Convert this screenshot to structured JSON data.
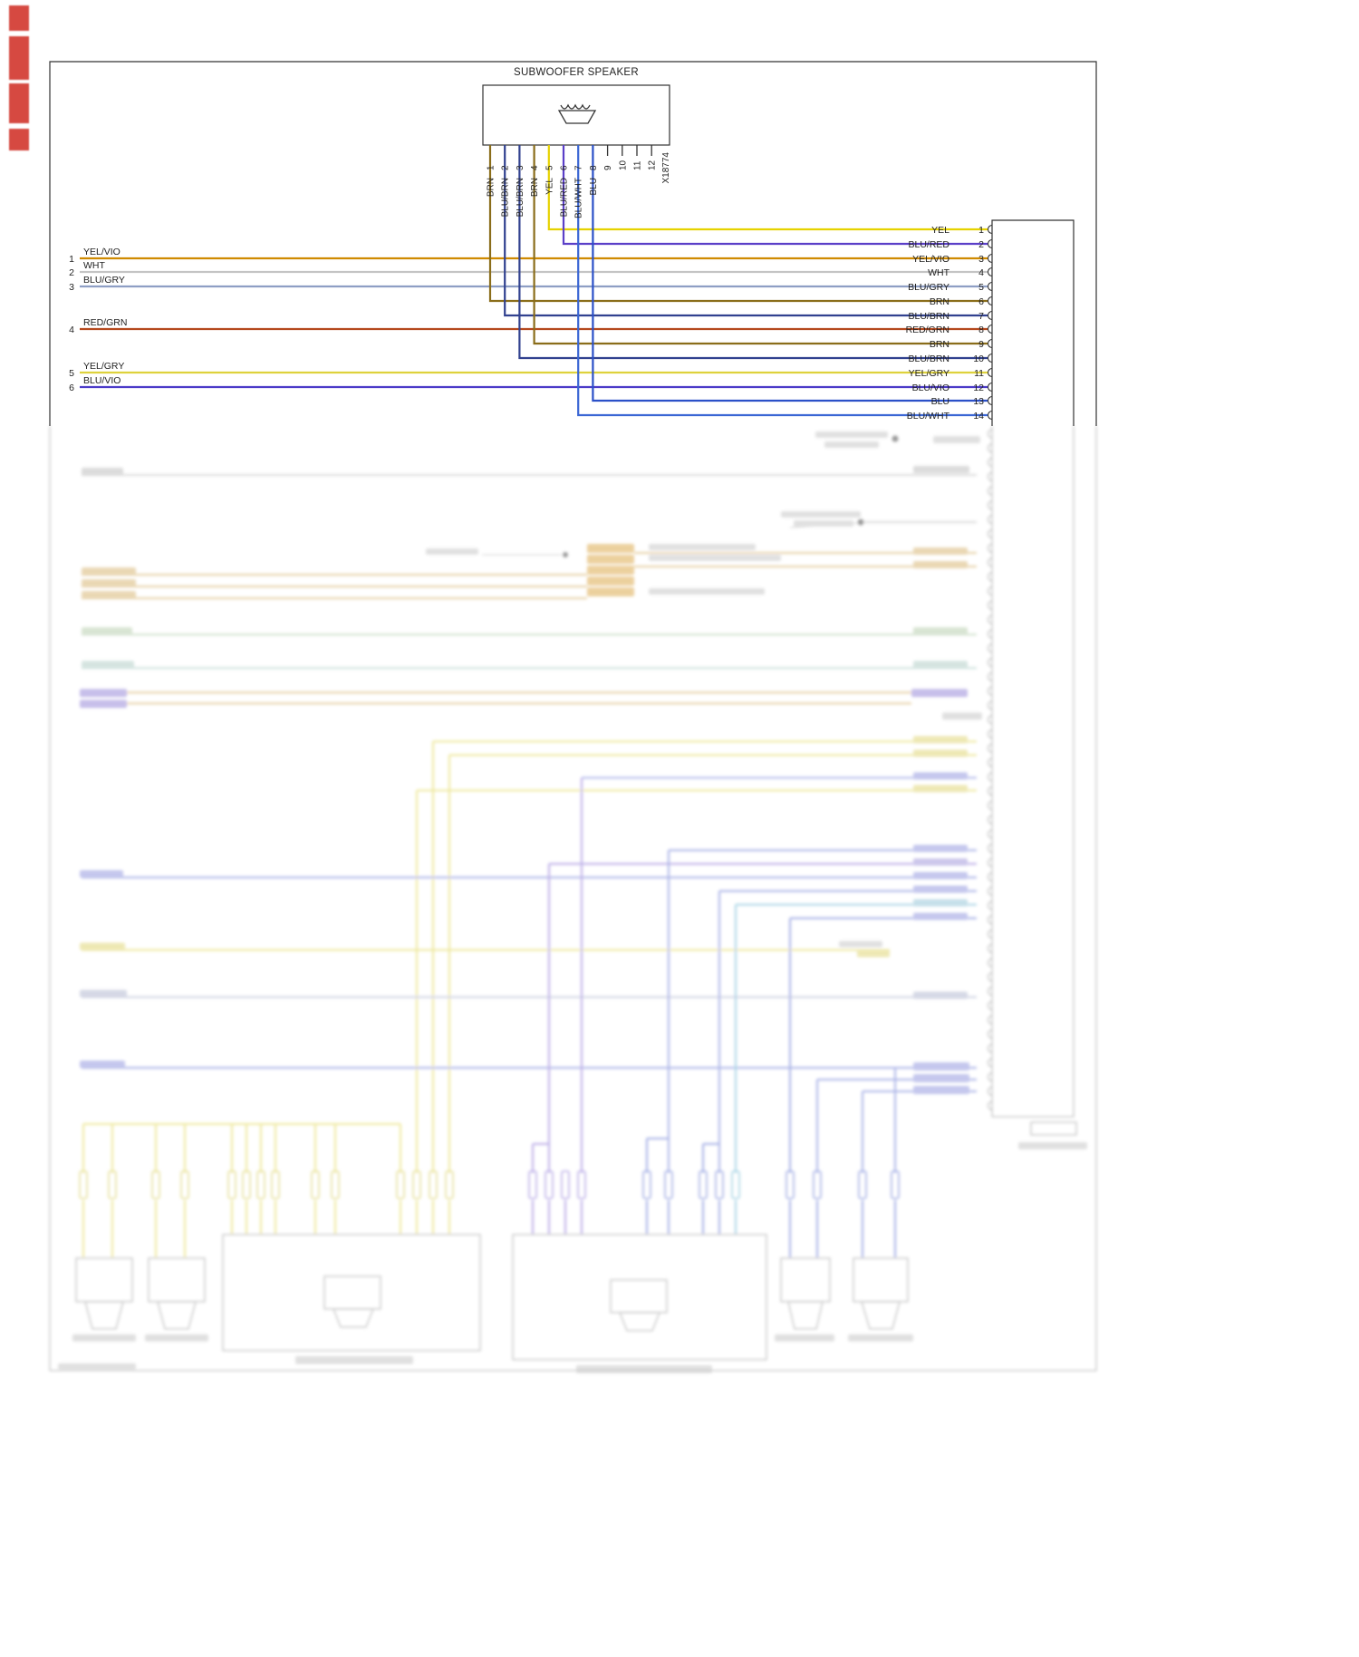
{
  "diagram": {
    "title": "SUBWOOFER SPEAKER",
    "connector_id": "X18774",
    "wire_colors": {
      "YEL": "#e6d200",
      "BLU/RED": "#5b3fc8",
      "YEL/VIO": "#cf8a00",
      "WHT": "#c4c4c4",
      "BLU/GRY": "#8e9ec4",
      "BRN": "#8a6d1a",
      "BLU/BRN": "#31418f",
      "RED/GRN": "#b5481d",
      "YEL/GRY": "#ded23c",
      "BLU/VIO": "#4b3ac8",
      "BLU": "#2b50c8",
      "BLU/WHT": "#3a66d4"
    },
    "subwoofer_pins": [
      {
        "pin": "1",
        "wire": "BRN"
      },
      {
        "pin": "2",
        "wire": "BLU/BRN"
      },
      {
        "pin": "3",
        "wire": "BLU/BRN"
      },
      {
        "pin": "4",
        "wire": "BRN"
      },
      {
        "pin": "5",
        "wire": "YEL"
      },
      {
        "pin": "6",
        "wire": "BLU/RED"
      },
      {
        "pin": "7",
        "wire": "BLU/WHT"
      },
      {
        "pin": "8",
        "wire": "BLU"
      },
      {
        "pin": "9",
        "wire": ""
      },
      {
        "pin": "10",
        "wire": ""
      },
      {
        "pin": "11",
        "wire": ""
      },
      {
        "pin": "12",
        "wire": ""
      }
    ],
    "left_branches": [
      {
        "num": "1",
        "wire": "YEL/VIO"
      },
      {
        "num": "2",
        "wire": "WHT"
      },
      {
        "num": "3",
        "wire": "BLU/GRY"
      },
      {
        "num": "4",
        "wire": "RED/GRN"
      },
      {
        "num": "5",
        "wire": "YEL/GRY"
      },
      {
        "num": "6",
        "wire": "BLU/VIO"
      }
    ],
    "right_connector_pins": [
      {
        "pin": "1",
        "wire": "YEL"
      },
      {
        "pin": "2",
        "wire": "BLU/RED"
      },
      {
        "pin": "3",
        "wire": "YEL/VIO"
      },
      {
        "pin": "4",
        "wire": "WHT"
      },
      {
        "pin": "5",
        "wire": "BLU/GRY"
      },
      {
        "pin": "6",
        "wire": "BRN"
      },
      {
        "pin": "7",
        "wire": "BLU/BRN"
      },
      {
        "pin": "8",
        "wire": "RED/GRN"
      },
      {
        "pin": "9",
        "wire": "BRN"
      },
      {
        "pin": "10",
        "wire": "BLU/BRN"
      },
      {
        "pin": "11",
        "wire": "YEL/GRY"
      },
      {
        "pin": "12",
        "wire": "BLU/VIO"
      },
      {
        "pin": "13",
        "wire": "BLU"
      },
      {
        "pin": "14",
        "wire": "BLU/WHT"
      }
    ]
  }
}
